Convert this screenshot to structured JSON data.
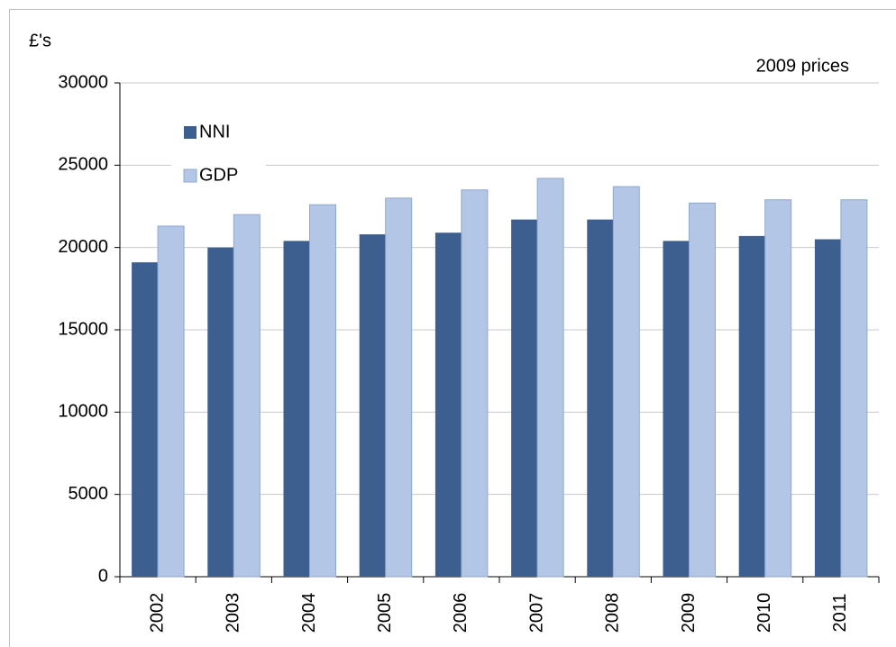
{
  "chart_data": {
    "type": "bar",
    "y_label": "£'s",
    "annotation": "2009 prices",
    "categories": [
      "2002",
      "2003",
      "2004",
      "2005",
      "2006",
      "2007",
      "2008",
      "2009",
      "2010",
      "2011"
    ],
    "series": [
      {
        "name": "NNI",
        "color": "#3c5f8f",
        "values": [
          19100,
          20000,
          20400,
          20800,
          20900,
          21700,
          21700,
          20400,
          20700,
          20500
        ]
      },
      {
        "name": "GDP",
        "color": "#b3c6e5",
        "values": [
          21300,
          22000,
          22600,
          23000,
          23500,
          24200,
          23700,
          22700,
          22900,
          22900
        ]
      }
    ],
    "ylim": [
      0,
      30000
    ],
    "yticks": [
      0,
      5000,
      10000,
      15000,
      20000,
      25000,
      30000
    ],
    "grid": true,
    "legend": "top-left"
  }
}
